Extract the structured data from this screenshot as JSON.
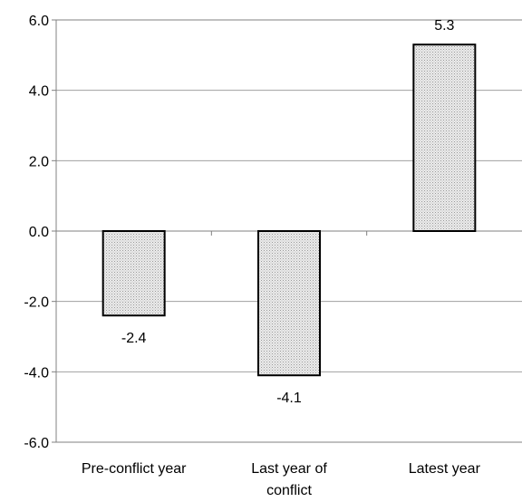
{
  "chart_data": {
    "type": "bar",
    "title": "",
    "xlabel": "",
    "ylabel": "",
    "categories": [
      [
        "Pre-conflict year"
      ],
      [
        "Last year of",
        "conflict"
      ],
      [
        "Latest year"
      ]
    ],
    "values": [
      -2.4,
      -4.1,
      5.3
    ],
    "data_labels": [
      "-2.4",
      "-4.1",
      "5.3"
    ],
    "ylim": [
      -6.0,
      6.0
    ],
    "yticks": [
      6.0,
      4.0,
      2.0,
      0.0,
      -2.0,
      -4.0,
      -6.0
    ],
    "ytick_labels": [
      "6.0",
      "4.0",
      "2.0",
      "0.0",
      "-2.0",
      "-4.0",
      "-6.0"
    ],
    "grid": true,
    "legend": "none",
    "bar_fill": "#d9d9d9",
    "bar_stroke": "#000000",
    "grid_color": "#a0a0a0"
  }
}
